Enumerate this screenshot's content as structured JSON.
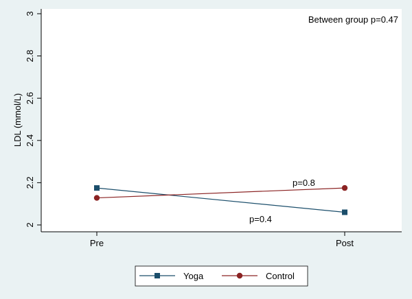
{
  "chart_data": {
    "type": "line",
    "categories": [
      "Pre",
      "Post"
    ],
    "series": [
      {
        "name": "Yoga",
        "values": [
          2.175,
          2.06
        ],
        "color": "#1b4e6b",
        "marker": "square"
      },
      {
        "name": "Control",
        "values": [
          2.128,
          2.175
        ],
        "color": "#8b2323",
        "marker": "circle"
      }
    ],
    "ylabel": "LDL (mmol/L)",
    "ylim": [
      2,
      3
    ],
    "yticks": [
      2,
      2.2,
      2.4,
      2.6,
      2.8,
      3
    ],
    "ytick_labels": [
      "2",
      "2.2",
      "2.4",
      "2.6",
      "2.8",
      "3"
    ],
    "annotations": {
      "between_group": "Between group p=0.47",
      "control_p": "p=0.8",
      "yoga_p": "p=0.4"
    },
    "legend_position": "bottom",
    "grid": false
  }
}
